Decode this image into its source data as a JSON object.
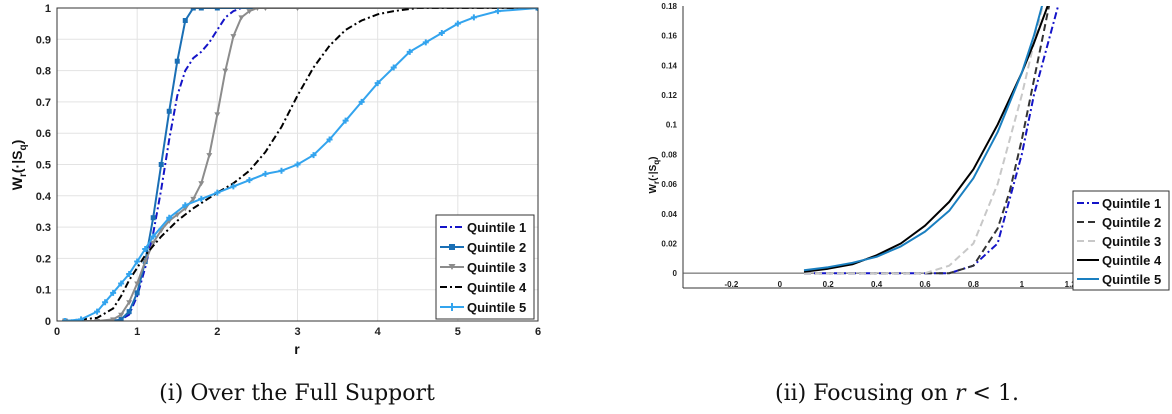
{
  "chart_data": [
    {
      "type": "line",
      "title": "",
      "xlabel": "r",
      "ylabel": "W_r(·|S_q)",
      "xlim": [
        0,
        6
      ],
      "ylim": [
        0,
        1
      ],
      "xticks": [
        "0",
        "1",
        "2",
        "3",
        "4",
        "5",
        "6"
      ],
      "yticks": [
        "0",
        "0.1",
        "0.2",
        "0.3",
        "0.4",
        "0.5",
        "0.6",
        "0.7",
        "0.8",
        "0.9",
        "1"
      ],
      "grid": true,
      "legend_position": "bottom-right",
      "caption": "(i) Over the Full Support",
      "series": [
        {
          "name": "Quintile 1",
          "color": "#1414c8",
          "style": "dashdot",
          "marker": "none",
          "x": [
            0.1,
            0.7,
            0.8,
            0.9,
            1.0,
            1.1,
            1.2,
            1.3,
            1.4,
            1.5,
            1.6,
            1.7,
            1.8,
            1.9,
            2.0,
            2.1,
            2.2,
            2.3,
            2.5,
            3.0,
            6.0
          ],
          "y": [
            0,
            0,
            0.005,
            0.02,
            0.08,
            0.17,
            0.28,
            0.42,
            0.58,
            0.72,
            0.8,
            0.84,
            0.86,
            0.89,
            0.93,
            0.97,
            0.99,
            1.0,
            1.0,
            1.0,
            1.0
          ]
        },
        {
          "name": "Quintile 2",
          "color": "#1a6fb5",
          "style": "solid",
          "marker": "square",
          "x": [
            0.1,
            0.7,
            0.8,
            0.9,
            1.0,
            1.1,
            1.2,
            1.3,
            1.4,
            1.5,
            1.6,
            1.7,
            1.8,
            2.0,
            6.0
          ],
          "y": [
            0,
            0,
            0.005,
            0.03,
            0.09,
            0.19,
            0.33,
            0.5,
            0.67,
            0.83,
            0.96,
            1.0,
            1.0,
            1.0,
            1.0
          ]
        },
        {
          "name": "Quintile 3",
          "color": "#8c8c8c",
          "style": "solid",
          "marker": "triangle",
          "x": [
            0.1,
            0.5,
            0.7,
            0.8,
            0.9,
            1.0,
            1.1,
            1.2,
            1.3,
            1.4,
            1.5,
            1.6,
            1.7,
            1.8,
            1.9,
            2.0,
            2.1,
            2.2,
            2.3,
            2.4,
            2.5,
            2.6,
            3.0,
            6.0
          ],
          "y": [
            0,
            0,
            0.005,
            0.02,
            0.06,
            0.12,
            0.19,
            0.25,
            0.29,
            0.32,
            0.34,
            0.36,
            0.39,
            0.44,
            0.53,
            0.66,
            0.8,
            0.91,
            0.97,
            0.99,
            1.0,
            1.0,
            1.0,
            1.0
          ]
        },
        {
          "name": "Quintile 4",
          "color": "#000000",
          "style": "dashdot",
          "marker": "none",
          "x": [
            0.1,
            0.5,
            0.7,
            0.8,
            0.9,
            1.0,
            1.1,
            1.2,
            1.3,
            1.5,
            1.7,
            2.0,
            2.2,
            2.4,
            2.6,
            2.8,
            3.0,
            3.2,
            3.4,
            3.6,
            3.8,
            4.0,
            4.2,
            4.5,
            5.0,
            6.0
          ],
          "y": [
            0,
            0.01,
            0.04,
            0.08,
            0.13,
            0.17,
            0.21,
            0.24,
            0.27,
            0.32,
            0.36,
            0.41,
            0.44,
            0.48,
            0.54,
            0.62,
            0.72,
            0.81,
            0.88,
            0.93,
            0.96,
            0.98,
            0.99,
            1.0,
            1.0,
            1.0
          ]
        },
        {
          "name": "Quintile 5",
          "color": "#33a4ee",
          "style": "solid",
          "marker": "plus",
          "x": [
            0.1,
            0.3,
            0.5,
            0.6,
            0.7,
            0.8,
            0.9,
            1.0,
            1.1,
            1.2,
            1.4,
            1.6,
            1.8,
            2.0,
            2.2,
            2.4,
            2.6,
            2.8,
            3.0,
            3.2,
            3.4,
            3.6,
            3.8,
            4.0,
            4.2,
            4.4,
            4.6,
            4.8,
            5.0,
            5.2,
            5.5,
            6.0
          ],
          "y": [
            0,
            0.005,
            0.03,
            0.06,
            0.09,
            0.12,
            0.15,
            0.19,
            0.23,
            0.27,
            0.33,
            0.37,
            0.39,
            0.41,
            0.43,
            0.45,
            0.47,
            0.48,
            0.5,
            0.53,
            0.58,
            0.64,
            0.7,
            0.76,
            0.81,
            0.86,
            0.89,
            0.92,
            0.95,
            0.97,
            0.99,
            1.0
          ]
        }
      ]
    },
    {
      "type": "line",
      "title": "",
      "xlabel": "",
      "ylabel": "W_r(·|S_q)",
      "xlim": [
        -0.4,
        1.6
      ],
      "ylim": [
        -0.01,
        0.18
      ],
      "xticks": [
        "-0.2",
        "0",
        "0.2",
        "0.4",
        "0.6",
        "0.8",
        "1",
        "1.2",
        "1.4"
      ],
      "yticks": [
        "0",
        "0.02",
        "0.04",
        "0.06",
        "0.08",
        "0.1",
        "0.12",
        "0.14",
        "0.16",
        "0.18"
      ],
      "grid": false,
      "legend_position": "bottom-right",
      "caption": "(ii) Focusing on r < 1.",
      "series": [
        {
          "name": "Quintile 1",
          "color": "#1414c8",
          "style": "dashdot",
          "x": [
            0.1,
            0.7,
            0.8,
            0.9,
            1.0,
            1.05,
            1.1,
            1.15,
            1.2
          ],
          "y": [
            0,
            0,
            0.005,
            0.02,
            0.08,
            0.12,
            0.15,
            0.18,
            0.21
          ]
        },
        {
          "name": "Quintile 2",
          "color": "#333333",
          "style": "dash",
          "x": [
            0.1,
            0.7,
            0.8,
            0.9,
            0.95,
            1.0,
            1.05,
            1.1,
            1.15
          ],
          "y": [
            0,
            0,
            0.005,
            0.03,
            0.055,
            0.09,
            0.13,
            0.17,
            0.21
          ]
        },
        {
          "name": "Quintile 3",
          "color": "#c8c8c8",
          "style": "dash",
          "x": [
            0.1,
            0.6,
            0.7,
            0.8,
            0.9,
            0.95,
            1.0,
            1.05,
            1.1,
            1.15
          ],
          "y": [
            0,
            0,
            0.005,
            0.02,
            0.06,
            0.09,
            0.12,
            0.155,
            0.19,
            0.23
          ]
        },
        {
          "name": "Quintile 4",
          "color": "#000000",
          "style": "solid",
          "x": [
            0.1,
            0.2,
            0.3,
            0.4,
            0.5,
            0.6,
            0.7,
            0.8,
            0.9,
            1.0,
            1.05,
            1.1,
            1.15
          ],
          "y": [
            0.001,
            0.003,
            0.006,
            0.012,
            0.02,
            0.032,
            0.048,
            0.07,
            0.1,
            0.135,
            0.155,
            0.177,
            0.2
          ]
        },
        {
          "name": "Quintile 5",
          "color": "#1a7fc0",
          "style": "solid",
          "x": [
            0.1,
            0.2,
            0.3,
            0.4,
            0.5,
            0.6,
            0.7,
            0.8,
            0.9,
            1.0,
            1.05,
            1.1,
            1.15
          ],
          "y": [
            0.002,
            0.004,
            0.007,
            0.011,
            0.018,
            0.028,
            0.042,
            0.064,
            0.095,
            0.135,
            0.16,
            0.19,
            0.22
          ]
        }
      ]
    }
  ]
}
